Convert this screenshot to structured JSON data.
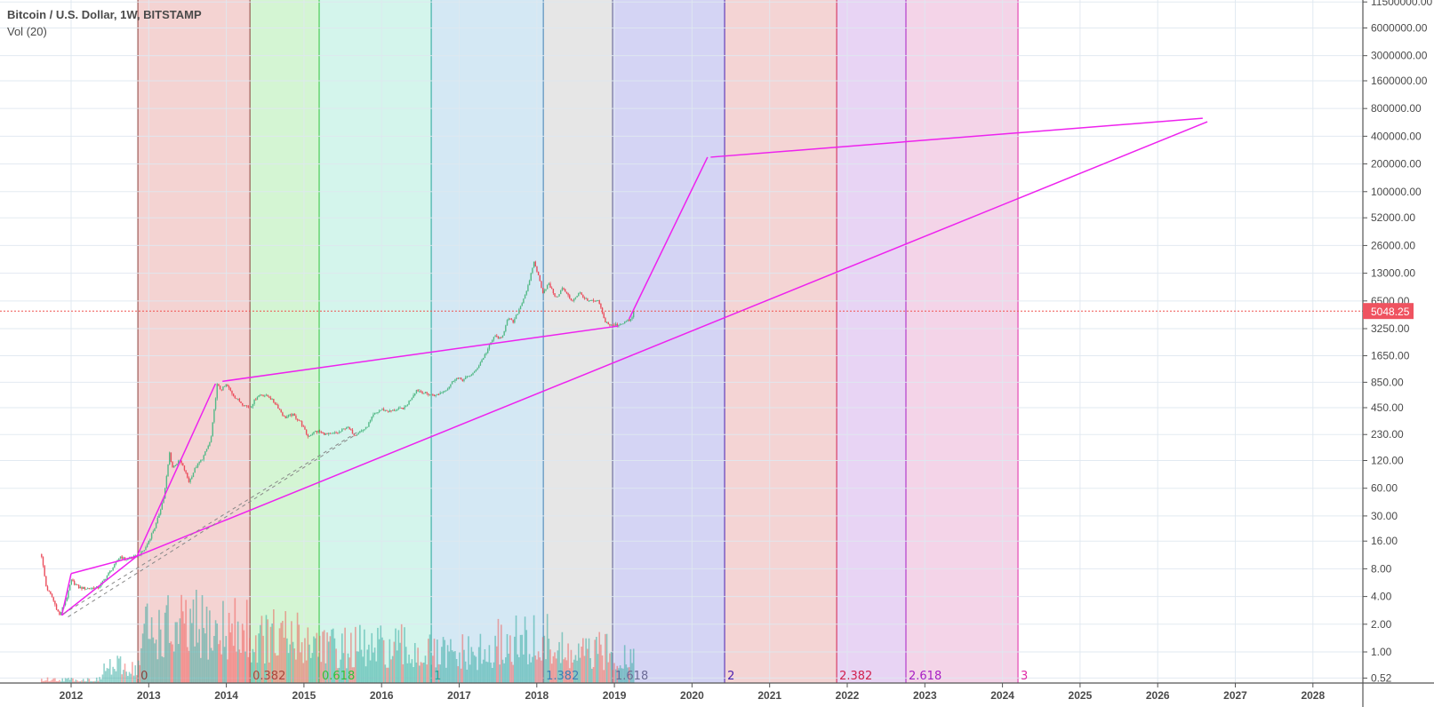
{
  "header": {
    "title": "Bitcoin / U.S. Dollar, 1W, BITSTAMP",
    "indicator": "Vol (20)"
  },
  "chart_data": {
    "type": "candlestick",
    "symbol": "Bitcoin / U.S. Dollar",
    "interval": "1W",
    "exchange": "BITSTAMP",
    "yscale": "log",
    "grid": true,
    "y_ticks": [
      "11500000.00",
      "6000000.00",
      "3000000.00",
      "1600000.00",
      "800000.00",
      "400000.00",
      "200000.00",
      "100000.00",
      "52000.00",
      "26000.00",
      "13000.00",
      "6500.00",
      "3250.00",
      "1650.00",
      "850.00",
      "450.00",
      "230.00",
      "120.00",
      "60.00",
      "30.00",
      "16.00",
      "8.00",
      "4.00",
      "2.00",
      "1.00",
      "0.52"
    ],
    "x_ticks": [
      "2012",
      "2013",
      "2014",
      "2015",
      "2016",
      "2017",
      "2018",
      "2019",
      "2020",
      "2021",
      "2022",
      "2023",
      "2024",
      "2025",
      "2026",
      "2027",
      "2028"
    ],
    "last_price": "5048.25",
    "price_close_approx": [
      [
        2011.62,
        11
      ],
      [
        2011.68,
        5
      ],
      [
        2011.75,
        4
      ],
      [
        2011.85,
        2.5
      ],
      [
        2011.95,
        4
      ],
      [
        2012.0,
        6
      ],
      [
        2012.1,
        5
      ],
      [
        2012.2,
        4.9
      ],
      [
        2012.35,
        5
      ],
      [
        2012.45,
        6.5
      ],
      [
        2012.55,
        8.5
      ],
      [
        2012.63,
        11
      ],
      [
        2012.7,
        10
      ],
      [
        2012.85,
        11
      ],
      [
        2012.95,
        13
      ],
      [
        2013.1,
        25
      ],
      [
        2013.2,
        50
      ],
      [
        2013.27,
        150
      ],
      [
        2013.3,
        100
      ],
      [
        2013.4,
        120
      ],
      [
        2013.45,
        100
      ],
      [
        2013.52,
        70
      ],
      [
        2013.6,
        100
      ],
      [
        2013.7,
        130
      ],
      [
        2013.8,
        200
      ],
      [
        2013.88,
        800
      ],
      [
        2013.93,
        700
      ],
      [
        2014.0,
        800
      ],
      [
        2014.1,
        600
      ],
      [
        2014.2,
        500
      ],
      [
        2014.3,
        450
      ],
      [
        2014.4,
        600
      ],
      [
        2014.45,
        630
      ],
      [
        2014.55,
        590
      ],
      [
        2014.65,
        480
      ],
      [
        2014.75,
        350
      ],
      [
        2014.85,
        380
      ],
      [
        2014.95,
        320
      ],
      [
        2015.05,
        220
      ],
      [
        2015.15,
        250
      ],
      [
        2015.3,
        230
      ],
      [
        2015.45,
        240
      ],
      [
        2015.55,
        280
      ],
      [
        2015.65,
        230
      ],
      [
        2015.8,
        270
      ],
      [
        2015.9,
        380
      ],
      [
        2016.0,
        430
      ],
      [
        2016.1,
        410
      ],
      [
        2016.3,
        450
      ],
      [
        2016.45,
        700
      ],
      [
        2016.55,
        650
      ],
      [
        2016.7,
        610
      ],
      [
        2016.85,
        730
      ],
      [
        2016.95,
        950
      ],
      [
        2017.05,
        900
      ],
      [
        2017.2,
        1100
      ],
      [
        2017.35,
        1800
      ],
      [
        2017.45,
        2700
      ],
      [
        2017.55,
        2500
      ],
      [
        2017.62,
        4200
      ],
      [
        2017.7,
        3800
      ],
      [
        2017.8,
        6000
      ],
      [
        2017.9,
        10000
      ],
      [
        2017.96,
        17500
      ],
      [
        2018.0,
        14000
      ],
      [
        2018.08,
        8000
      ],
      [
        2018.15,
        10000
      ],
      [
        2018.25,
        7000
      ],
      [
        2018.33,
        9000
      ],
      [
        2018.45,
        6500
      ],
      [
        2018.55,
        8000
      ],
      [
        2018.65,
        6500
      ],
      [
        2018.8,
        6400
      ],
      [
        2018.87,
        4000
      ],
      [
        2018.95,
        3500
      ],
      [
        2019.05,
        3600
      ],
      [
        2019.15,
        3900
      ],
      [
        2019.22,
        4100
      ],
      [
        2019.26,
        5048.25
      ]
    ],
    "fib_time_zones": {
      "start": 2012.86,
      "end_of_unit": 2016.64,
      "levels": [
        {
          "label": "0",
          "value": 0,
          "line": "#8d3f3a",
          "fill": "#f4d3d2",
          "text": "#8d3f3a"
        },
        {
          "label": "0.382",
          "value": 0.382,
          "line": "#8d3f3a",
          "fill": "#d4f5d3",
          "text": "#a8483c"
        },
        {
          "label": "0.618",
          "value": 0.618,
          "line": "#2ec43c",
          "fill": "#d4f5ec",
          "text": "#2ec43c"
        },
        {
          "label": "1",
          "value": 1,
          "line": "#26a69a",
          "fill": "#d4e8f4",
          "text": "#26a69a"
        },
        {
          "label": "1.382",
          "value": 1.382,
          "line": "#3d7fb5",
          "fill": "#e6e6e6",
          "text": "#3d7fb5"
        },
        {
          "label": "1.618",
          "value": 1.618,
          "line": "#5e5e8c",
          "fill": "#d4d4f4",
          "text": "#6a6a96"
        },
        {
          "label": "2",
          "value": 2,
          "line": "#4a1fb0",
          "fill": "#f4d4d4",
          "text": "#4a1fb0"
        },
        {
          "label": "2.382",
          "value": 2.382,
          "line": "#d1204e",
          "fill": "#e8d4f4",
          "text": "#d1204e"
        },
        {
          "label": "2.618",
          "value": 2.618,
          "line": "#a81fc4",
          "fill": "#f4d4e8",
          "text": "#a81fc4"
        },
        {
          "label": "3",
          "value": 3,
          "line": "#e02aa6",
          "fill": null,
          "text": "#e02aa6"
        }
      ]
    },
    "trendlines": [
      {
        "from": [
          2011.88,
          2.5
        ],
        "to": [
          2012.0,
          7.1
        ],
        "color": "#ee22ee",
        "style": "solid"
      },
      {
        "from": [
          2012.0,
          7.1
        ],
        "to": [
          2012.85,
          11
        ],
        "color": "#ee22ee",
        "style": "solid"
      },
      {
        "from": [
          2011.88,
          2.5
        ],
        "to": [
          2012.85,
          11
        ],
        "color": "#ee22ee",
        "style": "solid"
      },
      {
        "from": [
          2012.85,
          11
        ],
        "to": [
          2013.86,
          820
        ],
        "color": "#ee22ee",
        "style": "solid"
      },
      {
        "from": [
          2013.95,
          870
        ],
        "to": [
          2019.05,
          3470
        ],
        "color": "#ee22ee",
        "style": "solid"
      },
      {
        "from": [
          2012.85,
          11
        ],
        "to": [
          2026.64,
          575000
        ],
        "color": "#ee22ee",
        "style": "solid"
      },
      {
        "from": [
          2019.19,
          4150
        ],
        "to": [
          2020.2,
          237000
        ],
        "color": "#ee22ee",
        "style": "solid"
      },
      {
        "from": [
          2020.24,
          237000
        ],
        "to": [
          2026.58,
          627000
        ],
        "color": "#ee22ee",
        "style": "solid"
      },
      {
        "from": [
          2011.9,
          2.6
        ],
        "to": [
          2015.69,
          245
        ],
        "color": "#888888",
        "style": "dashed"
      },
      {
        "from": [
          2011.96,
          2.4
        ],
        "to": [
          2015.64,
          222
        ],
        "color": "#888888",
        "style": "dashed"
      }
    ],
    "colors": {
      "up": "#53b987",
      "down": "#eb4d5c",
      "price_line": "#ef5350"
    }
  }
}
